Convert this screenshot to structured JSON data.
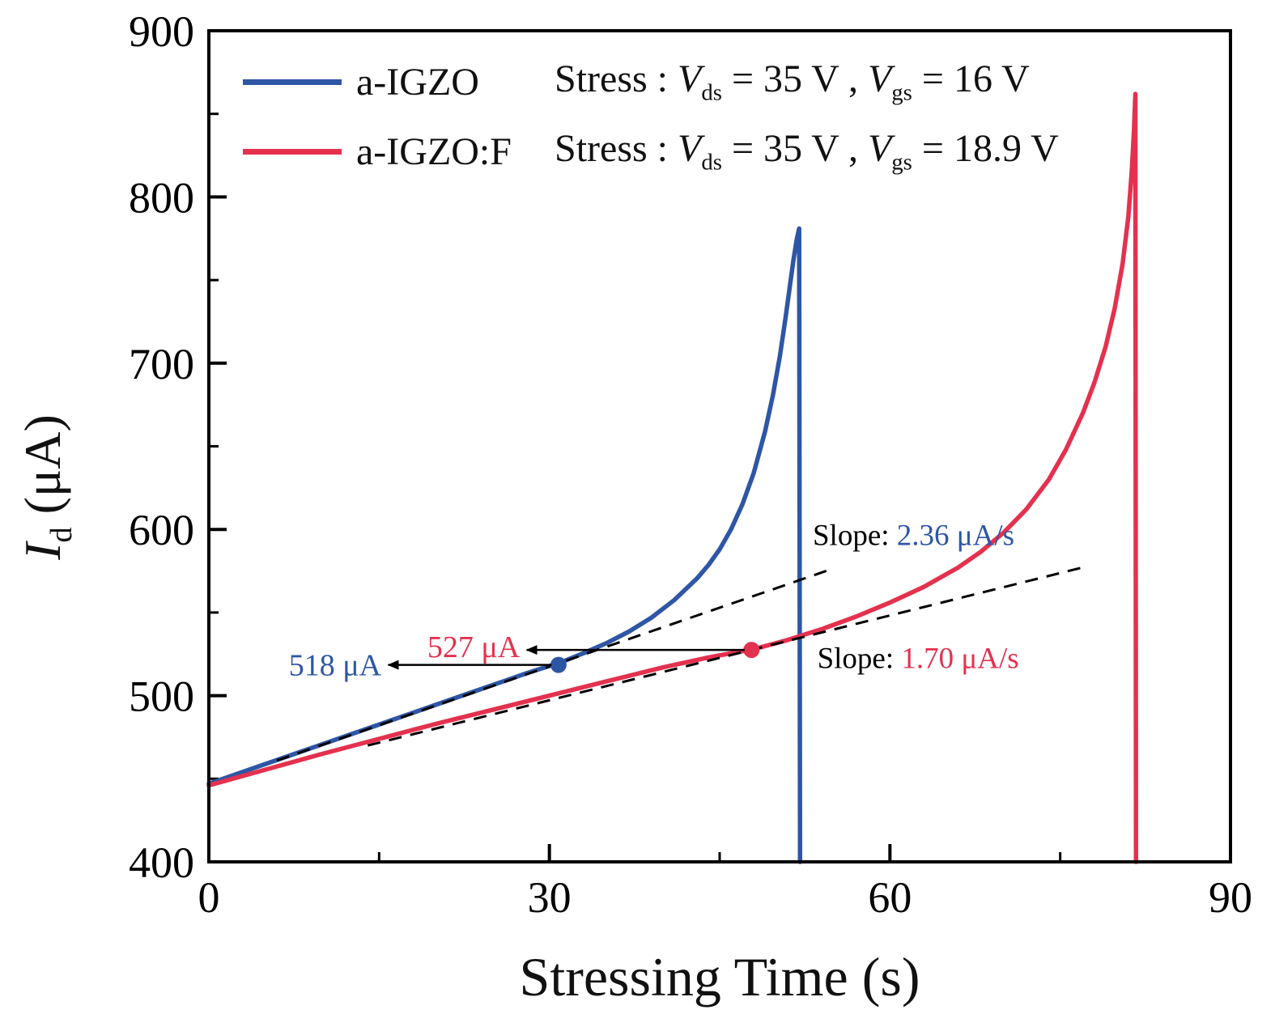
{
  "chart_data": {
    "type": "line",
    "title": "",
    "xlabel": "Stressing Time (s)",
    "ylabel": {
      "symbol": "I",
      "subscript": "d",
      "unit": " (μA)"
    },
    "xlim": [
      0,
      90
    ],
    "ylim": [
      400,
      900
    ],
    "x_ticks": [
      0,
      30,
      60,
      90
    ],
    "x_minor_ticks": [
      15,
      45,
      75
    ],
    "y_ticks": [
      400,
      500,
      600,
      700,
      800,
      900
    ],
    "y_minor_ticks": [
      450,
      550,
      650,
      750,
      850
    ],
    "grid": false,
    "legend_position": "top-left",
    "colors": {
      "blue": "#2e56a5",
      "red": "#e4314e",
      "axis": "#000000"
    },
    "series": [
      {
        "name": "a-IGZO",
        "color": "#2e56a5",
        "points": [
          [
            0,
            447
          ],
          [
            4,
            456.5
          ],
          [
            8,
            466
          ],
          [
            12,
            475.5
          ],
          [
            16,
            485
          ],
          [
            20,
            494.5
          ],
          [
            24,
            504
          ],
          [
            28,
            513.5
          ],
          [
            31,
            520
          ],
          [
            33,
            525.5
          ],
          [
            35,
            531.5
          ],
          [
            37,
            538.5
          ],
          [
            39,
            547
          ],
          [
            41,
            557.5
          ],
          [
            43,
            570.5
          ],
          [
            44,
            578.5
          ],
          [
            45,
            588
          ],
          [
            46,
            600
          ],
          [
            47,
            615
          ],
          [
            48,
            634
          ],
          [
            49,
            659
          ],
          [
            49.7,
            681
          ],
          [
            50.3,
            704
          ],
          [
            50.8,
            727
          ],
          [
            51.2,
            747
          ],
          [
            51.5,
            762
          ],
          [
            51.8,
            775
          ],
          [
            52.0,
            781
          ],
          [
            52.08,
            400
          ]
        ]
      },
      {
        "name": "a-IGZO:F",
        "color": "#e4314e",
        "points": [
          [
            0,
            446
          ],
          [
            5,
            455.5
          ],
          [
            10,
            465
          ],
          [
            15,
            474
          ],
          [
            20,
            483
          ],
          [
            25,
            491.5
          ],
          [
            30,
            500
          ],
          [
            35,
            508.5
          ],
          [
            40,
            517
          ],
          [
            44,
            523
          ],
          [
            48,
            528
          ],
          [
            51,
            533.5
          ],
          [
            54,
            540
          ],
          [
            57,
            547.5
          ],
          [
            60,
            556
          ],
          [
            63,
            565.5
          ],
          [
            66,
            577
          ],
          [
            68,
            586.5
          ],
          [
            70,
            598
          ],
          [
            72,
            612
          ],
          [
            74,
            630
          ],
          [
            75.5,
            648
          ],
          [
            77,
            670
          ],
          [
            78,
            688
          ],
          [
            79,
            710
          ],
          [
            79.8,
            733
          ],
          [
            80.5,
            760
          ],
          [
            81,
            788
          ],
          [
            81.3,
            815
          ],
          [
            81.5,
            840
          ],
          [
            81.62,
            862
          ],
          [
            81.68,
            400
          ]
        ]
      }
    ],
    "tangents": [
      {
        "for": "a-IGZO",
        "slope": "2.36 μA/s",
        "points": [
          [
            6,
            461
          ],
          [
            54.8,
            576
          ]
        ]
      },
      {
        "for": "a-IGZO:F",
        "slope": "1.70 μA/s",
        "points": [
          [
            14,
            470
          ],
          [
            77.5,
            578
          ]
        ]
      }
    ],
    "markers": [
      {
        "series": "a-IGZO",
        "t": 30.8,
        "value": 518.5,
        "color": "#2e56a5"
      },
      {
        "series": "a-IGZO:F",
        "t": 47.8,
        "value": 527.5,
        "color": "#e4314e"
      }
    ],
    "arrows": [
      {
        "y": 518.5,
        "from_t": 30.2,
        "to_t": 15.8
      },
      {
        "y": 527.5,
        "from_t": 47.2,
        "to_t": 28.0
      }
    ],
    "value_labels": [
      {
        "text": "518 μA",
        "color": "#2e56a5",
        "t": 15.2,
        "v": 518.5
      },
      {
        "text": "527 μA",
        "color": "#e4314e",
        "t": 27.4,
        "v": 529.5
      }
    ],
    "slope_labels": [
      {
        "prefix": "Slope: ",
        "value": "2.36 μA/s",
        "color": "#2e56a5",
        "t": 53.2,
        "v": 597
      },
      {
        "prefix": "Slope: ",
        "value": "1.70 μA/s",
        "color": "#e4314e",
        "t": 53.6,
        "v": 523
      }
    ],
    "legend": {
      "entries": [
        {
          "label": "a-IGZO",
          "color": "#2e56a5",
          "stress": {
            "prefix": "Stress : ",
            "v1": "V",
            "v1sub": "ds",
            "v1rest": " = 35 V , ",
            "v2": "V",
            "v2sub": "gs",
            "v2rest": " = 16 V"
          }
        },
        {
          "label": "a-IGZO:F",
          "color": "#e4314e",
          "stress": {
            "prefix": "Stress : ",
            "v1": "V",
            "v1sub": "ds",
            "v1rest": " = 35 V , ",
            "v2": "V",
            "v2sub": "gs",
            "v2rest": " = 18.9 V"
          }
        }
      ]
    }
  }
}
